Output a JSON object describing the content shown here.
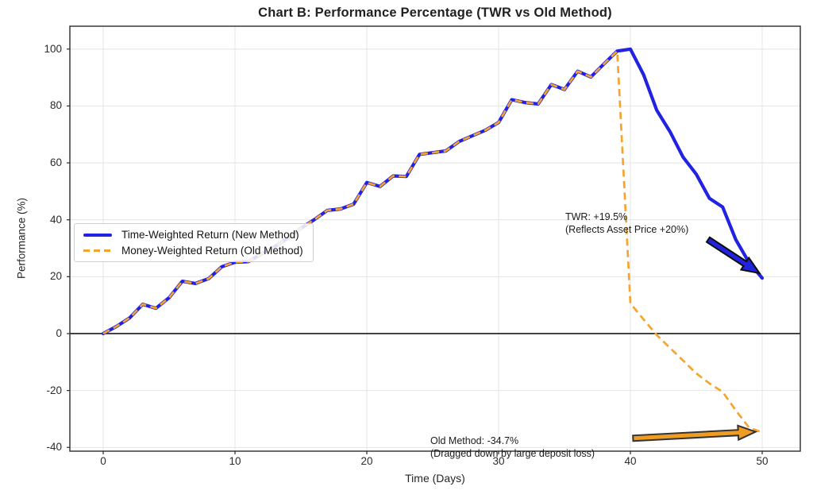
{
  "chart_data": {
    "type": "line",
    "title": "Chart B: Performance Percentage (TWR vs Old Method)",
    "xlabel": "Time (Days)",
    "ylabel": "Performance (%)",
    "xlim": [
      -2.53,
      52.89
    ],
    "ylim": [
      -41.32,
      108.03
    ],
    "x_ticks": [
      0,
      10,
      20,
      30,
      40,
      50
    ],
    "y_ticks": [
      -40,
      -20,
      0,
      20,
      40,
      60,
      80,
      100
    ],
    "grid": true,
    "legend_position": "center-left",
    "colors": {
      "grid": "#e7e7e7",
      "spine": "#2a2a2a",
      "zero_line": "#1a1a1a",
      "twr_blue": "#2222e1",
      "mwr_orange": "#f5a52f"
    },
    "series": [
      {
        "name": "Time-Weighted Return (New Method)",
        "color": "#2222e1",
        "style": "solid",
        "width": 4.2,
        "x": [
          0,
          1,
          2,
          3,
          4,
          5,
          6,
          7,
          8,
          9,
          10,
          11,
          12,
          13,
          14,
          15,
          16,
          17,
          18,
          19,
          20,
          21,
          22,
          23,
          24,
          25,
          26,
          27,
          28,
          29,
          30,
          31,
          32,
          33,
          34,
          35,
          36,
          37,
          38,
          39,
          40,
          41,
          42,
          43,
          44,
          45,
          46,
          47,
          48,
          49,
          50
        ],
        "values": [
          0,
          2.5,
          5.5,
          10.3,
          8.9,
          12.6,
          18.4,
          17.6,
          19.3,
          23.5,
          25.1,
          25.3,
          28,
          30.5,
          33.5,
          37,
          40,
          43.3,
          43.8,
          45.5,
          53.1,
          51.7,
          55.4,
          55.2,
          63,
          63.6,
          64.2,
          67.5,
          69.5,
          71.5,
          74.2,
          82.2,
          81.2,
          80.7,
          87.5,
          85.8,
          92.2,
          90.2,
          94.8,
          99.3,
          100,
          91,
          78.5,
          71,
          62,
          56,
          47.5,
          44.5,
          33,
          25,
          19.5
        ]
      },
      {
        "name": "Money-Weighted Return (Old Method)",
        "color": "#f5a52f",
        "style": "dashed",
        "width": 2.7,
        "x": [
          0,
          1,
          2,
          3,
          4,
          5,
          6,
          7,
          8,
          9,
          10,
          11,
          12,
          13,
          14,
          15,
          16,
          17,
          18,
          19,
          20,
          21,
          22,
          23,
          24,
          25,
          26,
          27,
          28,
          29,
          30,
          31,
          32,
          33,
          34,
          35,
          36,
          37,
          38,
          39,
          40,
          41,
          42,
          43,
          44,
          45,
          46,
          47,
          48,
          49,
          50
        ],
        "values": [
          0,
          2.5,
          5.5,
          10.3,
          8.9,
          12.6,
          18.4,
          17.6,
          19.3,
          23.5,
          25.1,
          25.3,
          28,
          30.5,
          33.5,
          37,
          40,
          43.3,
          43.8,
          45.5,
          53.1,
          51.7,
          55.4,
          55.2,
          63,
          63.6,
          64.2,
          67.5,
          69.5,
          71.5,
          74.2,
          82.2,
          81.2,
          80.7,
          87.5,
          85.8,
          92.2,
          90.2,
          94.8,
          99.3,
          10.6,
          5,
          -0.5,
          -5,
          -9.5,
          -14,
          -17.5,
          -20.5,
          -27,
          -33,
          -34.7
        ]
      }
    ],
    "annotations": [
      {
        "id": "twr",
        "lines": [
          "TWR: +19.5%",
          "(Reflects Asset Price +20%)"
        ],
        "arrow": {
          "from_day": 45.9,
          "from_val": 33,
          "to_day": 49.8,
          "to_val": 21.2,
          "fill": "#2222e1",
          "outline": "#0d0d0d"
        }
      },
      {
        "id": "old-method",
        "lines": [
          "Old Method: -34.7%",
          "(Dragged down by large deposit loss)"
        ],
        "arrow": {
          "from_day": 40.2,
          "from_val": -36.8,
          "to_day": 49.5,
          "to_val": -34.5,
          "fill": "#ef9d22",
          "outline": "#333333"
        }
      }
    ]
  }
}
